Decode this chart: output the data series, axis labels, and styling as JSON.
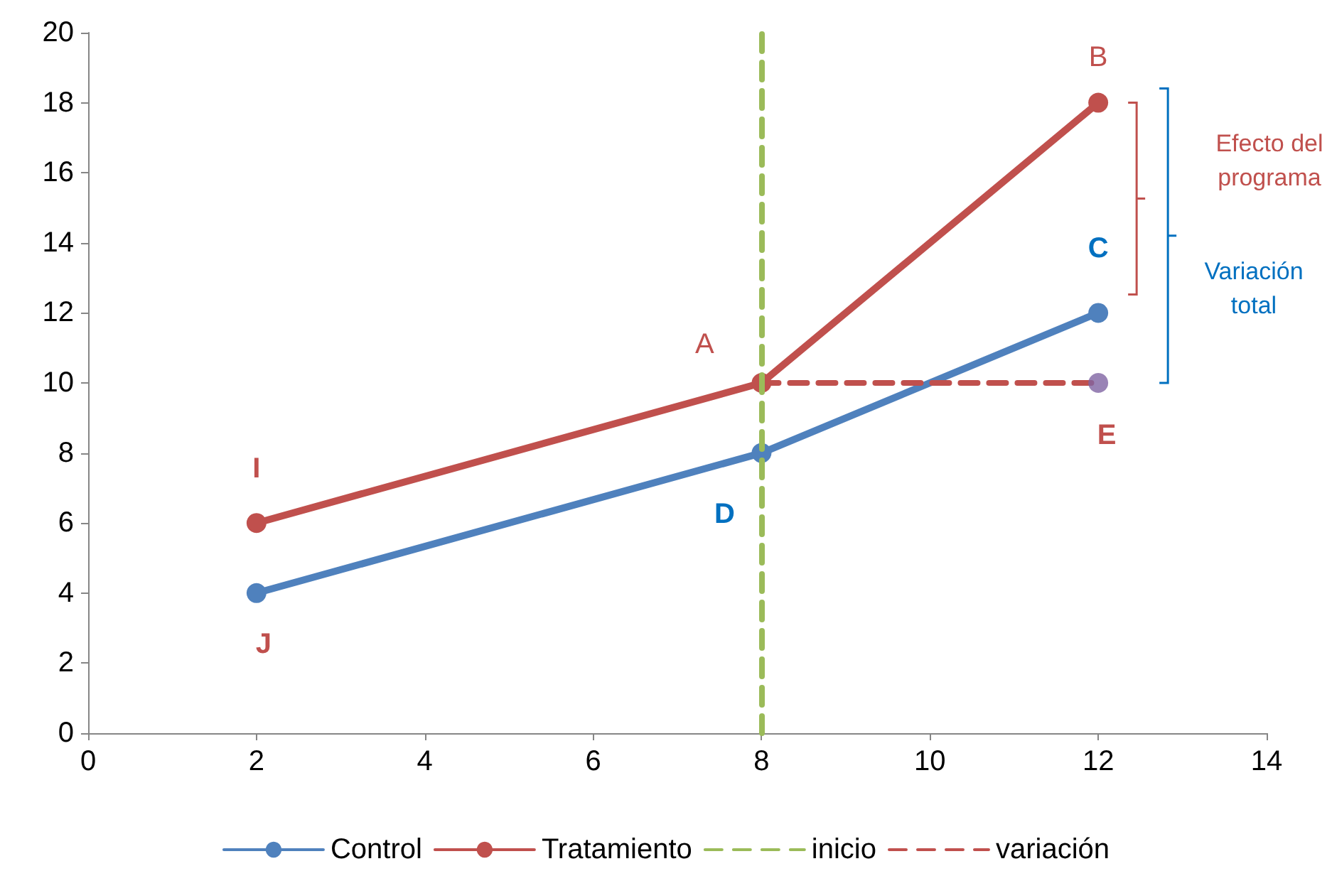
{
  "chart_data": {
    "type": "line",
    "x": [
      2,
      8,
      12
    ],
    "series": [
      {
        "name": "Control",
        "color": "#4f81bd",
        "values": [
          4,
          8,
          12
        ],
        "marker": "circle",
        "line_style": "solid"
      },
      {
        "name": "Tratamiento",
        "color": "#c0504d",
        "values": [
          6,
          10,
          18
        ],
        "marker": "circle",
        "line_style": "solid"
      },
      {
        "name": "variación",
        "color": "#c0504d",
        "values": [
          null,
          10,
          10
        ],
        "marker": "none",
        "line_style": "dashed"
      },
      {
        "type": "scatter",
        "color": "#8064a2",
        "values": [
          null,
          null,
          10
        ],
        "marker": "circle"
      }
    ],
    "ref_lines": [
      {
        "axis": "x",
        "value": 8,
        "label": "inicio",
        "color": "#9bbb59",
        "line_style": "dashed"
      }
    ],
    "xlim": [
      0,
      14
    ],
    "xticks": [
      0,
      2,
      4,
      6,
      8,
      10,
      12,
      14
    ],
    "ylim": [
      0,
      20
    ],
    "yticks": [
      0,
      2,
      4,
      6,
      8,
      10,
      12,
      14,
      16,
      18,
      20
    ],
    "grid": false,
    "legend": "bottom",
    "annotations": [
      {
        "text": "A",
        "x": 8,
        "y": 10
      },
      {
        "text": "B",
        "x": 12,
        "y": 18
      },
      {
        "text": "C",
        "x": 12,
        "y": 12
      },
      {
        "text": "D",
        "x": 8,
        "y": 8
      },
      {
        "text": "E",
        "x": 12,
        "y": 10
      },
      {
        "text": "I",
        "x": 2,
        "y": 6
      },
      {
        "text": "J",
        "x": 2,
        "y": 4
      },
      "Efecto del programa",
      "Variación total"
    ]
  }
}
